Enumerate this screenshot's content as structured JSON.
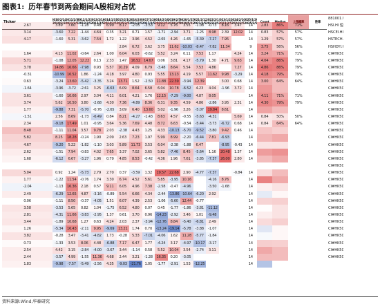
{
  "title": {
    "figure": "图表1:",
    "text": "历年春节到两会期间A股相对占优"
  },
  "headers": [
    "Ticker",
    "2010/2/14\n2010/3/3",
    "2011/2/3\n2011/3/5",
    "2012/1/23\n2012/3/5",
    "2013/2/10\n2013/3/5",
    "2014/1/31\n2014/3/5",
    "2015/2/19\n2015/3/5",
    "2016/2/8\n2016/3/5",
    "2017/1/28\n2017/3/5",
    "2018/2/16\n2018/3/5",
    "2019/2/5\n2019/3/5",
    "2020/1/25\n2020/5/22",
    "2021/2/12\n2021/3/5",
    "2022/2/1\n2022/3/5",
    "2023/1/22\n2023/3/5",
    "2024/2/10\n2024/3/5",
    "2025/1/29\n2025/3/5",
    "Count",
    "Median",
    "上涨概率",
    "胜率"
  ],
  "colors": {
    "pos": "#e05050",
    "neg": "#4a6fc0",
    "header_highlight": "#e8a0a0"
  },
  "rows": [
    {
      "t": "881001.WI Wind全A",
      "v": [
        "2.67",
        "3.89",
        "7.60",
        "-1.28",
        "0.48",
        "6.99",
        "8.17",
        "-2.05",
        "-3.53",
        "9.12",
        "5.76",
        "3.55",
        "-1.08",
        "-0.73",
        "8.16",
        "3.47"
      ],
      "n": "14",
      "m": "2.83",
      "p": "86%",
      "w": "71%",
      "mc": 2.83,
      "pc": 86,
      "wc": 71
    },
    {
      "t": "HSI.HI 恒生指数",
      "v": [
        "3.14",
        "-3.60",
        "7.22",
        "-1.44",
        "4.64",
        "0.35",
        "3.21",
        "0.71",
        "1.57",
        "-1.71",
        "-2.94",
        "3.71",
        "-1.25",
        "8.98",
        "2.39",
        "12.02"
      ],
      "n": "14",
      "m": "0.83",
      "p": "57%",
      "w": "57%",
      "mc": 0.83,
      "pc": 57,
      "wc": 57
    },
    {
      "t": "HSCEI.HI 恒生国企",
      "v": [
        "4.17",
        "-1.60",
        "5.31",
        "-3.62",
        "7.54",
        "1.72",
        "1.22",
        "3.96",
        "4.52",
        "-2.65",
        "4.26",
        "-1.65",
        "-5.39",
        "-7.27",
        "7.95",
        ""
      ],
      "n": "14",
      "m": "1.29",
      "p": "57%",
      "w": "57%",
      "mc": 1.29,
      "pc": 57,
      "wc": 57
    },
    {
      "t": "HSTECH.HI 恒生科技",
      "v": [
        "",
        "",
        "",
        "",
        "",
        "",
        "2.84",
        "6.72",
        "3.62",
        "3.75",
        "11.62",
        "-10.03",
        "-8.47",
        "-7.82",
        "11.34",
        ""
      ],
      "n": "9",
      "m": "3.75",
      "p": "56%",
      "w": "56%",
      "mc": 3.75,
      "pc": 56,
      "wc": 56
    },
    {
      "t": "HSHDYI.HI 恒生高股息",
      "v": [
        "1.64",
        "4.13",
        "11.02",
        "-0.64",
        "2.64",
        "1.00",
        "6.04",
        "6.03",
        "-0.62",
        "5.52",
        "3.24",
        "0.11",
        "7.53",
        "1.17",
        "",
        "4.24"
      ],
      "n": "14",
      "m": "3.24",
      "p": "71%",
      "w": "71%",
      "mc": 3.24,
      "pc": 71,
      "wc": 71
    },
    {
      "t": "CI#HK5005.WI 建材",
      "v": [
        "5.71",
        "-1.08",
        "12.05",
        "12.22",
        "0.13",
        "2.33",
        "1.47",
        "16.52",
        "14.67",
        "0.06",
        "3.81",
        "4.17",
        "-5.79",
        "1.30",
        "4.71",
        "9.63"
      ],
      "n": "14",
      "m": "4.04",
      "p": "86%",
      "w": "79%",
      "mc": 4.04,
      "pc": 86,
      "wc": 79
    },
    {
      "t": "CI#HK5022.WI 国防军工",
      "v": [
        "3.78",
        "14.86",
        "16.66",
        "-7.98",
        "0.93",
        "5.57",
        "10.29",
        "4.09",
        "6.79",
        "-3.48",
        "8.64",
        "5.54",
        "7.53",
        "4.86",
        "",
        "7.27"
      ],
      "n": "14",
      "m": "4.86",
      "p": "86%",
      "w": "79%",
      "mc": 4.86,
      "pc": 86,
      "wc": 79
    },
    {
      "t": "CI#HK5007.WI 建筑",
      "v": [
        "-0.31",
        "-10.99",
        "16.52",
        "1.86",
        "-1.24",
        "4.18",
        "3.97",
        "4.80",
        "0.93",
        "5.55",
        "13.13",
        "4.19",
        "5.57",
        "11.62",
        "9.98",
        "-3.29"
      ],
      "n": "14",
      "m": "4.18",
      "p": "79%",
      "w": "79%",
      "mc": 4.18,
      "pc": 79,
      "wc": 79
    },
    {
      "t": "CI#HK5024.WI 家电设备",
      "v": [
        "0.63",
        "-3.24",
        "13.60",
        "-5.42",
        "-3.35",
        "3.24",
        "13.71",
        "1.52",
        "-2.50",
        "11.88",
        "22.39",
        "-3.94",
        "12.39",
        "",
        "3.00",
        "0.68"
      ],
      "n": "14",
      "m": "3.00",
      "p": "64%",
      "w": "64%",
      "mc": 3.0,
      "pc": 64,
      "wc": 64
    },
    {
      "t": "CI#HK5014.WI 商贸零售",
      "v": [
        "-1.64",
        "-3.96",
        "-3.72",
        "-2.61",
        "3.25",
        "-6.63",
        "6.09",
        "8.64",
        "6.58",
        "6.04",
        "10.78",
        "-6.52",
        "4.23",
        "4.04",
        "-1.96",
        "3.72"
      ],
      "n": "14",
      "m": "",
      "p": "",
      "w": "",
      "mc": 3.72,
      "pc": 64,
      "wc": 50
    },
    {
      "t": "CI#HK5025.WI 电子",
      "v": [
        "3.61",
        "-1.60",
        "10.66",
        "2.97",
        "3.04",
        "4.11",
        "6.01",
        "4.21",
        "1.76",
        "12.15",
        "-7.29",
        "-9.00",
        "4.87",
        "8.05",
        "",
        ""
      ],
      "n": "14",
      "m": "4.11",
      "p": "71%",
      "w": "71%",
      "mc": 4.11,
      "pc": 71,
      "wc": 71
    },
    {
      "t": "CI#HK5023.WI 交通运输",
      "v": [
        "3.74",
        "5.62",
        "10.50",
        "3.80",
        "-2.68",
        "4.30",
        "7.36",
        "-4.89",
        "8.36",
        "6.31",
        "9.35",
        "4.59",
        "4.86",
        "-2.86",
        "3.95",
        "2.31"
      ],
      "n": "14",
      "m": "4.30",
      "p": "79%",
      "w": "79%",
      "mc": 4.3,
      "pc": 79,
      "wc": 79
    },
    {
      "t": "CI#HK5011.WI 汽车",
      "v": [
        "1.77",
        "-9.88",
        "7.31",
        "-5.70",
        "-0.76",
        "-2.65",
        "3.09",
        "6.40",
        "13.60",
        "5.02",
        "-1.96",
        "3.26",
        "-5.07",
        "19.84",
        "8.61",
        ""
      ],
      "n": "14",
      "m": "",
      "p": "",
      "w": "",
      "mc": 3.26,
      "pc": 64,
      "wc": 64
    },
    {
      "t": "CI#HK5017.WI 基础化工",
      "v": [
        "-1.51",
        "2.56",
        "8.69",
        "-1.73",
        "-6.49",
        "0.84",
        "8.21",
        "-4.27",
        "-1.43",
        "8.63",
        "4.57",
        "-0.55",
        "-5.63",
        "-4.31",
        "",
        "5.69"
      ],
      "n": "14",
      "m": "0.84",
      "p": "50%",
      "w": "50%",
      "mc": 0.84,
      "pc": 50,
      "wc": 50
    },
    {
      "t": "CI#HK5019.WI 机械",
      "v": [
        "2.34",
        "-9.18",
        "17.49",
        "1.01",
        "-0.95",
        "3.64",
        "5.36",
        "7.69",
        "4.48",
        "8.72",
        "6.63",
        "-0.54",
        "-5.44",
        "-3.73",
        "-6.72",
        "0.68"
      ],
      "n": "14",
      "m": "0.84",
      "p": "64%",
      "w": "64%",
      "mc": 0.84,
      "pc": 64,
      "wc": 64
    },
    {
      "t": "CI#HK5018.WI 医药",
      "v": [
        "8.48",
        "-1.11",
        "11.04",
        "3.57",
        "9.78",
        "2.03",
        "-2.38",
        "4.43",
        "1.25",
        "4.33",
        "-10.13",
        "-5.70",
        "-9.52",
        "-3.80",
        "9.42",
        "0.46"
      ],
      "n": "14",
      "m": "",
      "p": "",
      "w": "",
      "mc": 2.03,
      "pc": 57,
      "wc": 57
    },
    {
      "t": "CI#HK5026.WI 通信",
      "v": [
        "5.82",
        "8.25",
        "18.28",
        "-0.24",
        "1.90",
        "2.09",
        "2.63",
        "7.23",
        "1.97",
        "5.99",
        "8.99",
        "-2.20",
        "-6.44",
        "7.81",
        "-6.93",
        ""
      ],
      "n": "14",
      "m": "",
      "p": "",
      "w": "",
      "mc": 2.63,
      "pc": 71,
      "wc": 71
    },
    {
      "t": "CI#HK5028.WI 计算机",
      "v": [
        "4.67",
        "-9.20",
        "5.22",
        "-1.82",
        "-1.10",
        "3.03",
        "5.89",
        "11.73",
        "3.53",
        "6.04",
        "-2.38",
        "-1.88",
        "6.47",
        "",
        "-8.95",
        "-0.43"
      ],
      "n": "14",
      "m": "",
      "p": "",
      "w": "",
      "mc": 1.0,
      "pc": 50,
      "wc": 50
    },
    {
      "t": "CI#HK5004.WI 电力及公用事业",
      "v": [
        "2.62",
        "-1.51",
        "7.94",
        "-0.83",
        "4.02",
        "7.65",
        "3.37",
        "7.02",
        "3.65",
        "5.82",
        "-7.46",
        "8.45",
        "-5.64",
        "1.16",
        "20.48",
        "1.37"
      ],
      "n": "14",
      "m": "",
      "p": "",
      "w": "",
      "mc": 3.51,
      "pc": 79,
      "wc": 79
    },
    {
      "t": "CI#HK5006.WI 轻工",
      "v": [
        "1.68",
        "-6.12",
        "6.67",
        "-3.27",
        "1.96",
        "0.79",
        "4.85",
        "8.53",
        "-0.42",
        "4.36",
        "1.96",
        "7.61",
        "-3.85",
        "-7.37",
        "26.00",
        "2.80"
      ],
      "n": "14",
      "m": "",
      "p": "",
      "w": "",
      "mc": 2.38,
      "pc": 71,
      "wc": 71
    },
    {
      "t": "CI#HK5021.WI 综合",
      "v": [
        "",
        "",
        "",
        "",
        "",
        "",
        "",
        "",
        "",
        "",
        "",
        "",
        "",
        "",
        "",
        ""
      ],
      "n": "",
      "m": "",
      "p": "",
      "w": "",
      "mc": 0,
      "pc": 0,
      "wc": 0
    },
    {
      "t": "CI#HK5009.WI 煤炭",
      "v": [
        "5.04",
        "0.92",
        "1.24",
        "-5.73",
        "2.79",
        "2.70",
        "0.37",
        "-3.59",
        "1.32",
        "19.57",
        "22.68",
        "2.90",
        "-4.77",
        "-7.37",
        "",
        "-0.84"
      ],
      "n": "14",
      "m": "",
      "p": "",
      "w": "",
      "mc": 1.28,
      "pc": 64,
      "wc": 64
    },
    {
      "t": "CI#HK5029.WI 非银行金融",
      "v": [
        "1.77",
        "-1.22",
        "11.54",
        "-0.76",
        "1.74",
        "3.30",
        "6.74",
        "4.52",
        "5.61",
        "5.85",
        "-3.95",
        "10.16",
        "",
        "-4.16",
        "8.76",
        ""
      ],
      "n": "14",
      "m": "",
      "p": "",
      "w": "",
      "mc": 4.52,
      "pc": 71,
      "wc": 64
    },
    {
      "t": "CI#HK5027.WI 银行",
      "v": [
        "-2.04",
        "-1.13",
        "16.36",
        "2.18",
        "0.57",
        "9.11",
        "6.05",
        "4.96",
        "7.38",
        "-2.58",
        "-0.47",
        "-4.96",
        "",
        "-3.50",
        "-1.68",
        ""
      ],
      "n": "14",
      "m": "",
      "p": "",
      "w": "",
      "mc": 0.57,
      "pc": 50,
      "wc": 50
    },
    {
      "t": "CI#HK5015.WI 传媒",
      "v": [
        "2.49",
        "-6.29",
        "12.65",
        "4.87",
        "-3.16",
        "-0.89",
        "5.54",
        "6.66",
        "4.34",
        "-2.44",
        "-13.86",
        "-10.64",
        "-6.20",
        "2.92",
        "",
        ""
      ],
      "n": "14",
      "m": "",
      "p": "",
      "w": "",
      "mc": -0.89,
      "pc": 43,
      "wc": 43
    },
    {
      "t": "CI#HK5016.WI 钢铁",
      "v": [
        "0.06",
        "-1.11",
        "8.50",
        "-0.37",
        "-4.05",
        "1.51",
        "6.07",
        "4.39",
        "2.53",
        "-1.06",
        "-5.60",
        "12.44",
        "-0.77",
        "",
        "",
        ""
      ],
      "n": "14",
      "m": "",
      "p": "",
      "w": "",
      "mc": 1.51,
      "pc": 57,
      "wc": 57
    },
    {
      "t": "CI#HK5030.WI 农林牧渔",
      "v": [
        "3.58",
        "-3.53",
        "5.65",
        "0.82",
        "1.04",
        "-1.75",
        "6.52",
        "4.80",
        "0.07",
        "0.45",
        "-1.77",
        "-1.86",
        "-3.81",
        "-11.12",
        "",
        ""
      ],
      "n": "14",
      "m": "",
      "p": "",
      "w": "",
      "mc": 0.07,
      "pc": 50,
      "wc": 43
    },
    {
      "t": "CI#HK5008.WI 食品饮料",
      "v": [
        "2.81",
        "-4.31",
        "11.66",
        "-3.83",
        "-2.95",
        "1.37",
        "0.61",
        "3.70",
        "0.96",
        "-14.23",
        "-2.92",
        "3.46",
        "1.01",
        "-9.48",
        "",
        ""
      ],
      "n": "14",
      "m": "",
      "p": "",
      "w": "",
      "mc": 0.61,
      "pc": 50,
      "wc": 43
    },
    {
      "t": "CI#HK5003.WI 纺织服装",
      "v": [
        "3.44",
        "-1.89",
        "10.68",
        "1.27",
        "0.63",
        "4.24",
        "2.03",
        "2.37",
        "-3.94",
        "-12.76",
        "8.84",
        "-5.40",
        "-6.81",
        "2.49",
        "",
        ""
      ],
      "n": "14",
      "m": "",
      "p": "",
      "w": "",
      "mc": 1.27,
      "pc": 57,
      "wc": 50
    },
    {
      "t": "CI#HK5013.WI 消费者服务",
      "v": [
        "1.26",
        "-5.34",
        "16.43",
        "-2.11",
        "9.95",
        "-9.69",
        "13.21",
        "1.74",
        "0.70",
        "-13.24",
        "-19.14",
        "-5.78",
        "-3.88",
        "-1.07",
        "",
        ""
      ],
      "n": "14",
      "m": "",
      "p": "",
      "w": "",
      "mc": -1.07,
      "pc": 43,
      "wc": 43
    },
    {
      "t": "CI#HK5001.WI 有色金属",
      "v": [
        "3.82",
        "-0.28",
        "3.47",
        "-3.41",
        "-4.82",
        "1.73",
        "-0.28",
        "5.33",
        "-7.01",
        "-4.06",
        "1.62",
        "11.28",
        "-5.77",
        "-1.84",
        "",
        ""
      ],
      "n": "14",
      "m": "",
      "p": "",
      "w": "",
      "mc": -0.28,
      "pc": 43,
      "wc": 43
    },
    {
      "t": "CI#HK5002.WI 房地产",
      "v": [
        "0.73",
        "-1.33",
        "3.53",
        "8.06",
        "4.48",
        "-6.88",
        "7.17",
        "6.47",
        "1.77",
        "-4.24",
        "3.17",
        "-4.97",
        "-10.17",
        "-3.17",
        "",
        ""
      ],
      "n": "14",
      "m": "",
      "p": "",
      "w": "",
      "mc": 1.77,
      "pc": 57,
      "wc": 57
    },
    {
      "t": "CI#HK5020.WI 石油石化",
      "v": [
        "2.54",
        "4.42",
        "3.15",
        "-2.84",
        "-4.00",
        "-3.67",
        "3.44",
        "-1.14",
        "0.58",
        "5.52",
        "10.04",
        "3.54",
        "-2.74",
        "3.11",
        "",
        ""
      ],
      "n": "14",
      "m": "",
      "p": "",
      "w": "",
      "mc": 3.11,
      "pc": 64,
      "wc": 57
    },
    {
      "t": "CI#HK5010.WI 钢铁",
      "v": [
        "2.44",
        "-3.57",
        "4.99",
        "-1.55",
        "11.36",
        "4.68",
        "2.44",
        "3.21",
        "-1.28",
        "16.35",
        "0.20",
        "-3.05",
        "",
        "",
        "",
        ""
      ],
      "n": "14",
      "m": "",
      "p": "",
      "w": "",
      "mc": 2.44,
      "pc": 64,
      "wc": 57
    },
    {
      "t": "CI#HK5012.WI 钢铁",
      "v": [
        "1.83",
        "-9.98",
        "-7.57",
        "-5.49",
        "-2.56",
        "4.35",
        "-9.03",
        "-21.76",
        "1.05",
        "-1.77",
        "-2.91",
        "1.53",
        "-12.25",
        "",
        "",
        ""
      ],
      "n": "14",
      "m": "",
      "p": "",
      "w": "",
      "mc": -2.56,
      "pc": 36,
      "wc": 36
    }
  ],
  "note": "资料来源:Wind,华泰研究"
}
